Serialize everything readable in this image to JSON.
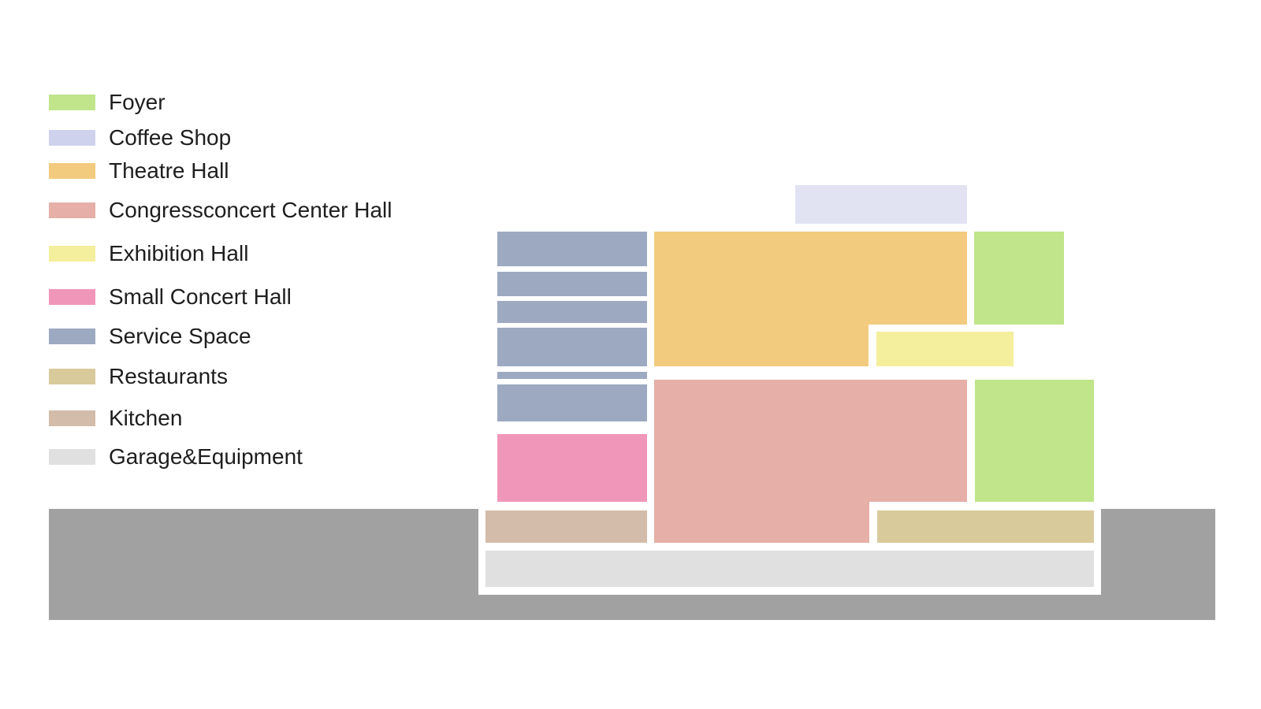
{
  "colors": {
    "foyer": "#c0e58a",
    "coffee_shop": "#e1e3f3",
    "coffee_shop_legend": "#cfd2ed",
    "theatre_hall": "#f3cb7e",
    "congress_hall": "#e6afa7",
    "exhibition_hall": "#f4ef9c",
    "small_concert_hall": "#f096b9",
    "service_space": "#9ca9c1",
    "restaurants": "#d9ca9c",
    "kitchen": "#d3bca9",
    "garage_equipment": "#e0e0e0",
    "ground": "#a1a1a1"
  },
  "legend": [
    {
      "key": "foyer",
      "label": "Foyer"
    },
    {
      "key": "coffee_shop_legend",
      "label": "Coffee Shop"
    },
    {
      "key": "theatre_hall",
      "label": "Theatre Hall"
    },
    {
      "key": "congress_hall",
      "label": "Congressconcert Center Hall"
    },
    {
      "key": "exhibition_hall",
      "label": "Exhibition Hall"
    },
    {
      "key": "small_concert_hall",
      "label": "Small Concert Hall"
    },
    {
      "key": "service_space",
      "label": "Service Space"
    },
    {
      "key": "restaurants",
      "label": "Restaurants"
    },
    {
      "key": "kitchen",
      "label": "Kitchen"
    },
    {
      "key": "garage_equipment",
      "label": "Garage&Equipment"
    }
  ]
}
